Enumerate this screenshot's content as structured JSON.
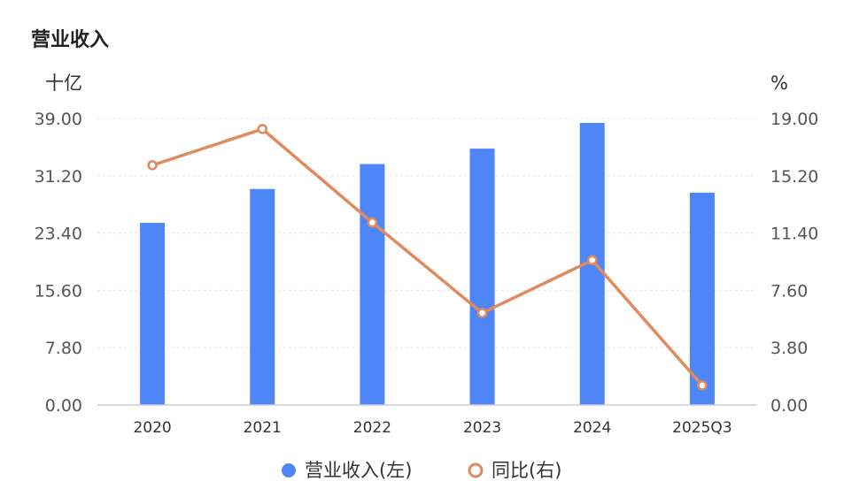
{
  "chart_data": {
    "type": "bar+line",
    "title": "营业收入",
    "left_unit": "十亿",
    "right_unit": "%",
    "categories": [
      "2020",
      "2021",
      "2022",
      "2023",
      "2024",
      "2025Q3"
    ],
    "left_axis": {
      "ylim": [
        0,
        39
      ],
      "ticks": [
        "0.00",
        "7.80",
        "15.60",
        "23.40",
        "31.20",
        "39.00"
      ]
    },
    "right_axis": {
      "ylim": [
        0,
        19
      ],
      "ticks": [
        "0.00",
        "3.80",
        "7.60",
        "11.40",
        "15.20",
        "19.00"
      ]
    },
    "series": [
      {
        "name": "营业收入(左)",
        "type": "bar",
        "axis": "left",
        "color": "#4f86f7",
        "values": [
          24.8,
          29.4,
          32.8,
          34.9,
          38.4,
          28.9
        ]
      },
      {
        "name": "同比(右)",
        "type": "line",
        "axis": "right",
        "color": "#e08a5e",
        "values": [
          15.9,
          18.3,
          12.1,
          6.1,
          9.6,
          1.3
        ]
      }
    ],
    "grid": true,
    "legend": "bottom-center"
  }
}
